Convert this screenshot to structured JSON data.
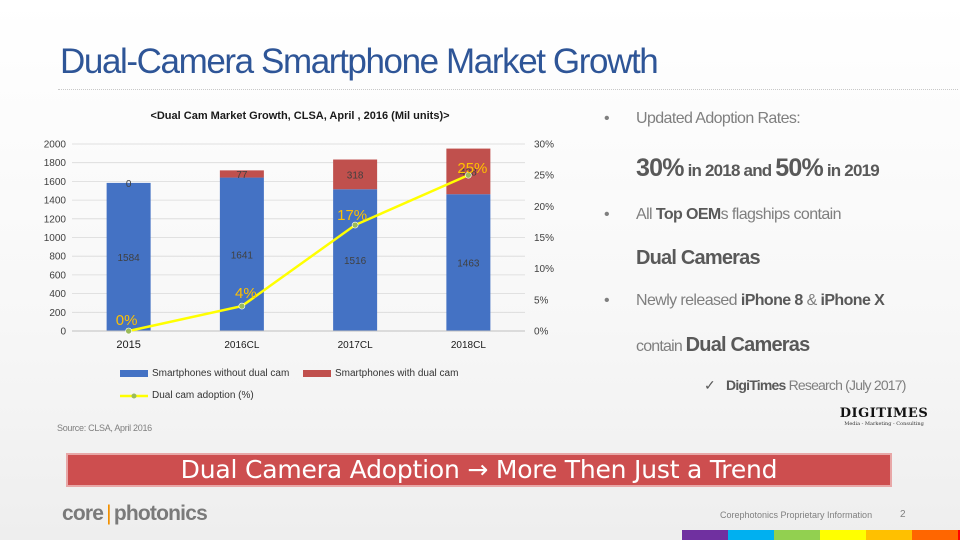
{
  "slide": {
    "title": "Dual-Camera Smartphone Market Growth",
    "source": "Source: CLSA, April 2016",
    "banner": "Dual Camera Adoption  → More Then Just a Trend",
    "footer_company_1": "core",
    "footer_company_sep": "|",
    "footer_company_2": "photonics",
    "footer_info": "Corephotonics Proprietary Information",
    "page_number": "2",
    "footer_strip_colors": [
      "#7030a0",
      "#00b0f0",
      "#92d050",
      "#ffff00",
      "#ffc000",
      "#ff6600",
      "#ff0000"
    ],
    "digitimes_logo": "DIGITIMES",
    "digitimes_tagline": "Media - Marketing - Consulting"
  },
  "bullets": {
    "b1": "Updated Adoption Rates:",
    "b1_line2": {
      "p1": "30%",
      "p2": " in 2018 and ",
      "p3": "50%",
      "p4": " in 2019"
    },
    "b2": {
      "p1": "All ",
      "p2": "Top OEM",
      "p3": "s flagships contain"
    },
    "b2_line2": "Dual Cameras",
    "b3": {
      "p1": "Newly released ",
      "p2": "iPhone 8",
      "p3": " & ",
      "p4": "iPhone X"
    },
    "b3_line2": {
      "p1": "contain ",
      "p2": "Dual Cameras"
    },
    "sub": {
      "mark": "✓",
      "p1": "DigiTimes",
      "p2": " Research (July 2017)"
    },
    "dot": "•"
  },
  "chart_data": {
    "type": "bar",
    "title": "<Dual Cam Market Growth, CLSA, April , 2016  (Mil units)>",
    "categories": [
      "2015",
      "2016CL",
      "2017CL",
      "2018CL"
    ],
    "series": [
      {
        "name": "Smartphones without dual cam",
        "type": "stacked-bar",
        "axis": "left",
        "color": "#4472c4",
        "values": [
          1584,
          1641,
          1516,
          1463
        ]
      },
      {
        "name": "Smartphones with dual cam",
        "type": "stacked-bar",
        "axis": "left",
        "color": "#c0504d",
        "values": [
          0,
          77,
          318,
          488
        ]
      },
      {
        "name": "Dual cam adoption (%)",
        "type": "line",
        "axis": "right",
        "color": "#ffff00",
        "marker_color": "#9bbb59",
        "values": [
          0,
          4,
          17,
          25
        ],
        "labels": [
          "0%",
          "4%",
          "17%",
          "25%"
        ],
        "label_color": "#ffc000"
      }
    ],
    "y_left": {
      "min": 0,
      "max": 2000,
      "ticks": [
        "0",
        "200",
        "400",
        "600",
        "800",
        "1000",
        "1200",
        "1400",
        "1600",
        "1800",
        "2000"
      ]
    },
    "y_right": {
      "min": 0,
      "max": 30,
      "ticks": [
        "0%",
        "5%",
        "10%",
        "15%",
        "20%",
        "25%",
        "30%"
      ]
    },
    "grid": true,
    "legend_position": "bottom"
  }
}
